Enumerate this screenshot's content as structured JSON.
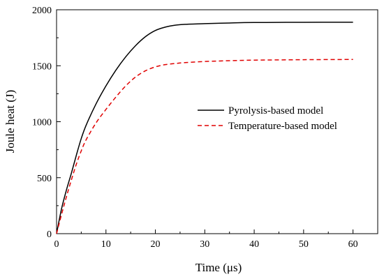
{
  "chart_data": {
    "type": "line",
    "xlabel": "Time (μs)",
    "ylabel": "Joule heat (J)",
    "xlim": [
      0,
      65
    ],
    "ylim": [
      0,
      2000
    ],
    "xticks": [
      0,
      10,
      20,
      30,
      40,
      50,
      60
    ],
    "yticks": [
      0,
      500,
      1000,
      1500,
      2000
    ],
    "x_minor_step": 5,
    "y_minor_step": 250,
    "legend_position": "center-right",
    "series": [
      {
        "name": "Pyrolysis-based model",
        "color": "#000000",
        "dash": "solid",
        "x": [
          0,
          1,
          2,
          3,
          4,
          5,
          6,
          8,
          10,
          12,
          14,
          16,
          18,
          20,
          22,
          24,
          26,
          30,
          35,
          40,
          50,
          60
        ],
        "y": [
          0,
          220,
          390,
          540,
          700,
          850,
          970,
          1160,
          1320,
          1460,
          1580,
          1680,
          1760,
          1815,
          1845,
          1862,
          1870,
          1876,
          1882,
          1886,
          1888,
          1889
        ]
      },
      {
        "name": "Temperature-based model",
        "color": "#e00000",
        "dash": "dashed",
        "x": [
          0,
          1,
          2,
          3,
          4,
          5,
          6,
          8,
          10,
          12,
          14,
          16,
          18,
          20,
          22,
          24,
          26,
          30,
          35,
          40,
          50,
          60
        ],
        "y": [
          0,
          170,
          330,
          480,
          620,
          740,
          840,
          990,
          1110,
          1220,
          1320,
          1400,
          1455,
          1490,
          1510,
          1520,
          1528,
          1538,
          1545,
          1550,
          1554,
          1556
        ]
      }
    ]
  }
}
